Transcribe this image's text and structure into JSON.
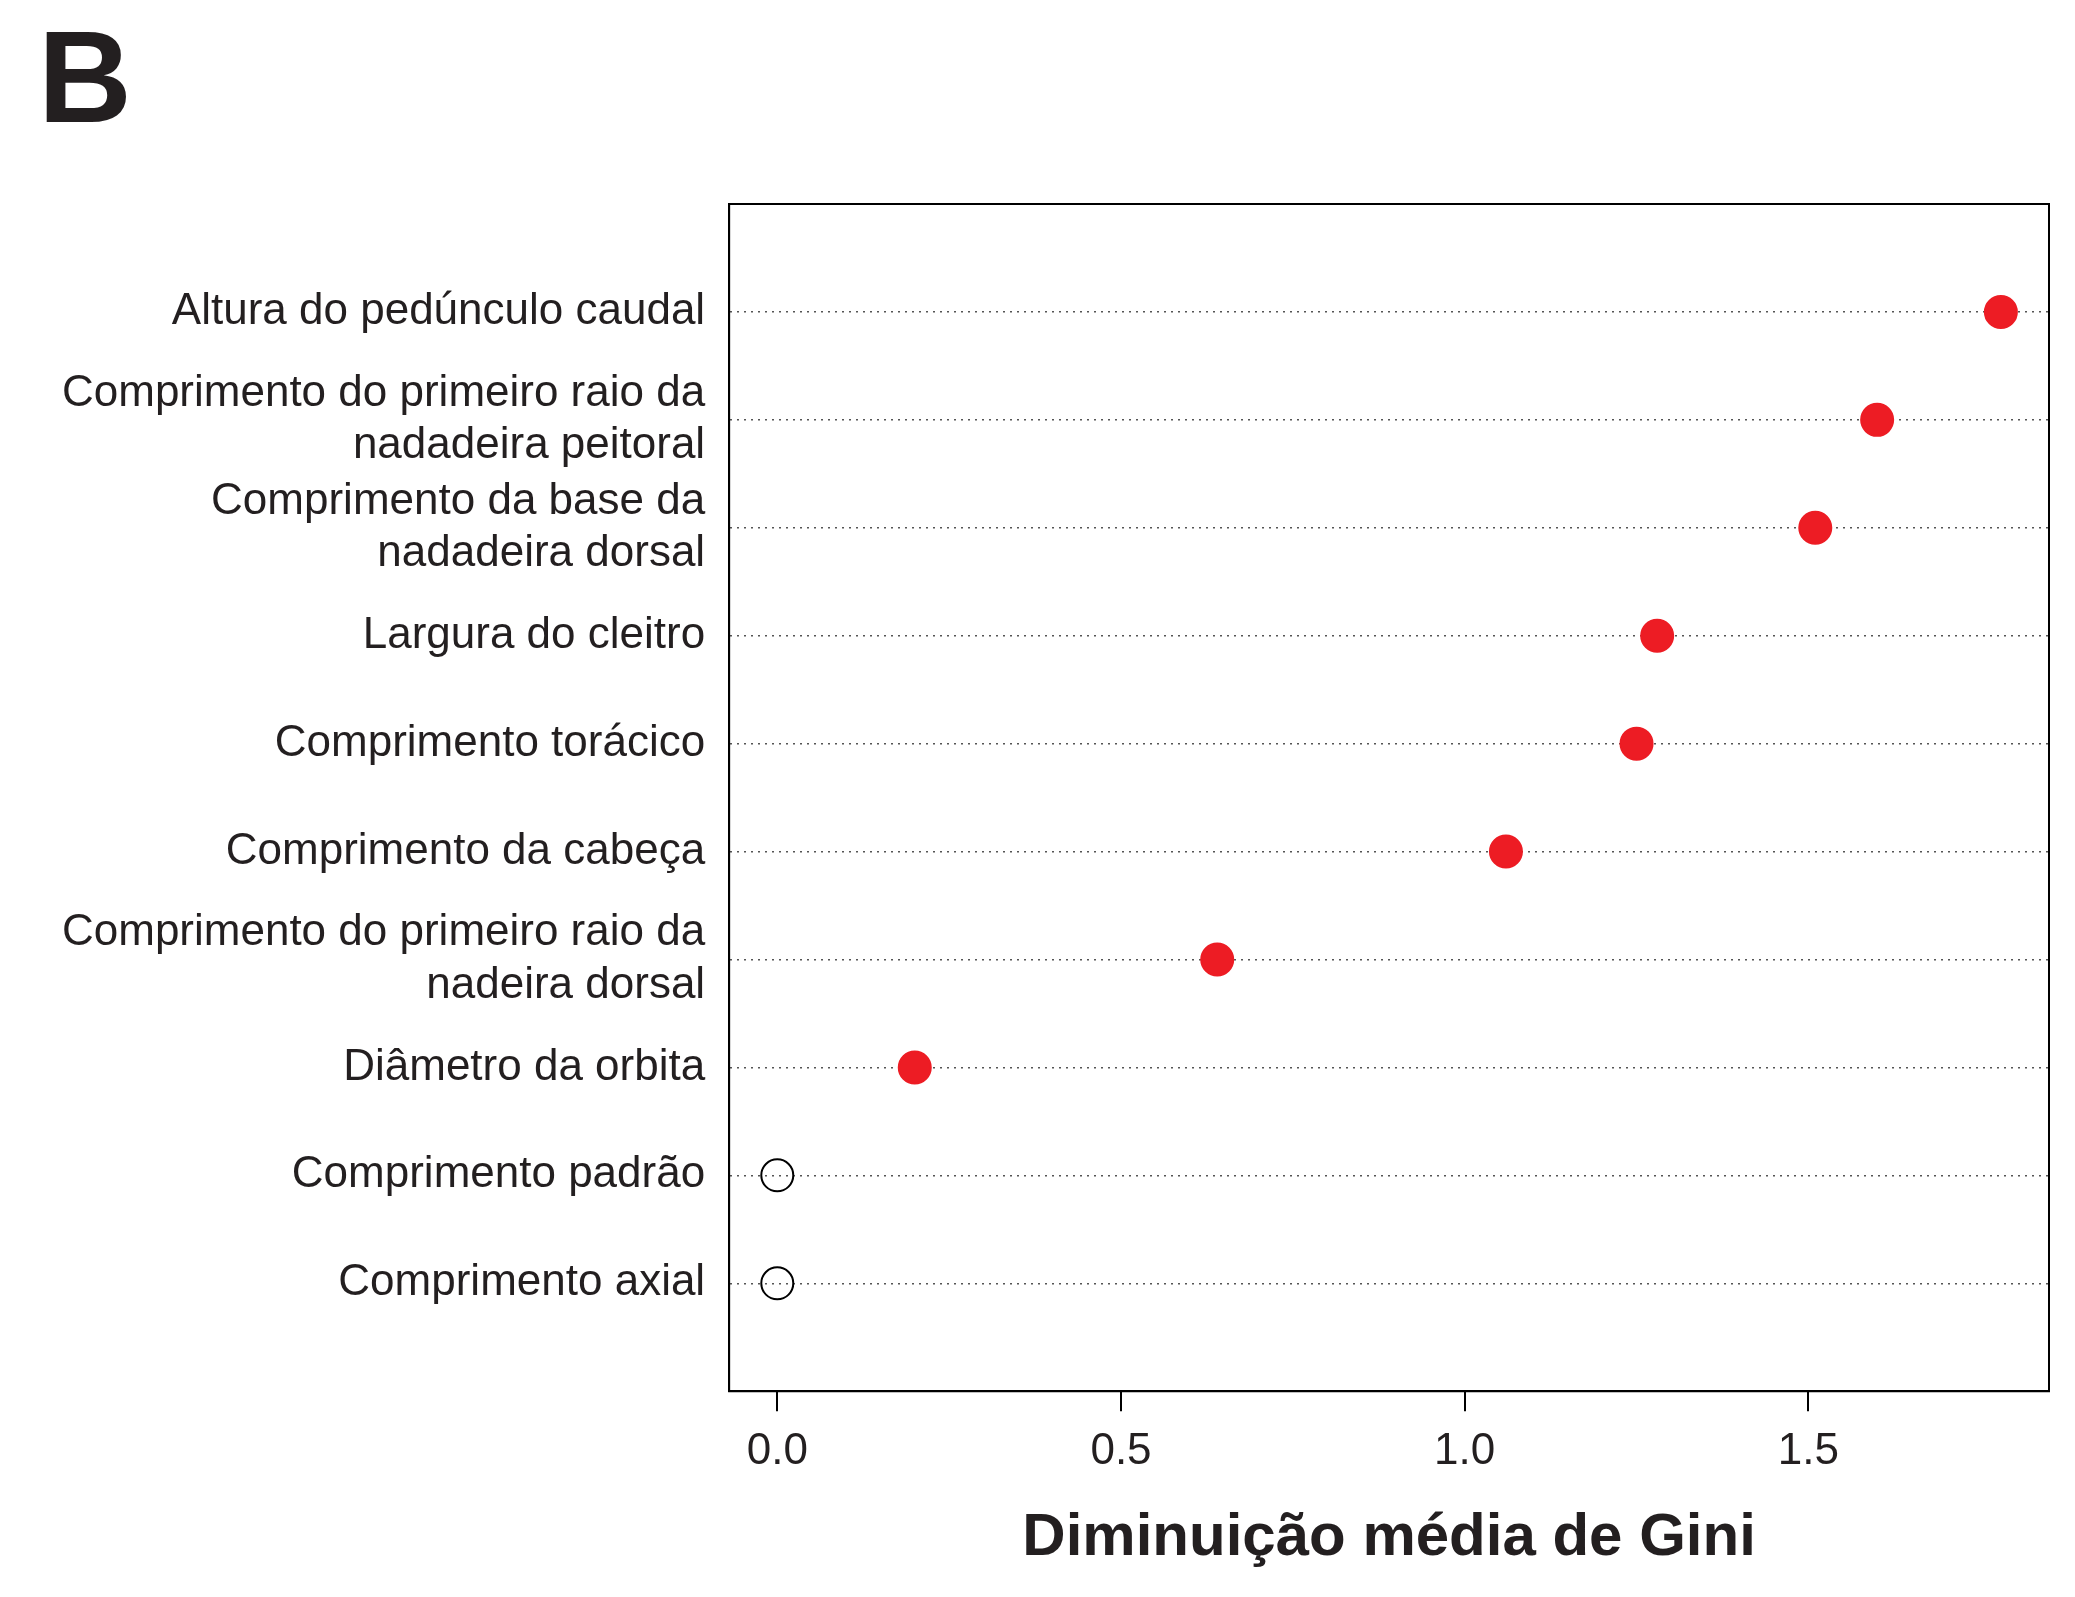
{
  "chart_data": {
    "type": "scatter",
    "title": "B",
    "xlabel": "Diminuição média de Gini",
    "categories": [
      "Altura do pedúnculo caudal",
      "Comprimento do primeiro raio da nadadeira peitoral",
      "Comprimento da base da nadadeira dorsal",
      "Largura do cleitro",
      "Comprimento torácico",
      "Comprimento da cabeça",
      "Comprimento do primeiro raio da nadeira dorsal",
      "Diâmetro da orbita",
      "Comprimento padrão",
      "Comprimento axial"
    ],
    "series": [
      {
        "color": "#ed1c24",
        "values": [
          1.78,
          1.6,
          1.51,
          1.28,
          1.25,
          1.06,
          0.64,
          0.2,
          null,
          null
        ]
      },
      {
        "color": "#000000",
        "values": [
          null,
          null,
          null,
          null,
          null,
          null,
          null,
          null,
          0,
          0
        ]
      }
    ],
    "xlim": [
      -0.07,
      1.85
    ],
    "xticks": [
      {
        "value": 0,
        "label": "0.0"
      },
      {
        "value": 0.5,
        "label": "0.5"
      },
      {
        "value": 1,
        "label": "1.0"
      },
      {
        "value": 1.5,
        "label": "1.5"
      }
    ],
    "orientation": "horizontal",
    "grid": "y",
    "marker": "circle",
    "legend": false
  }
}
